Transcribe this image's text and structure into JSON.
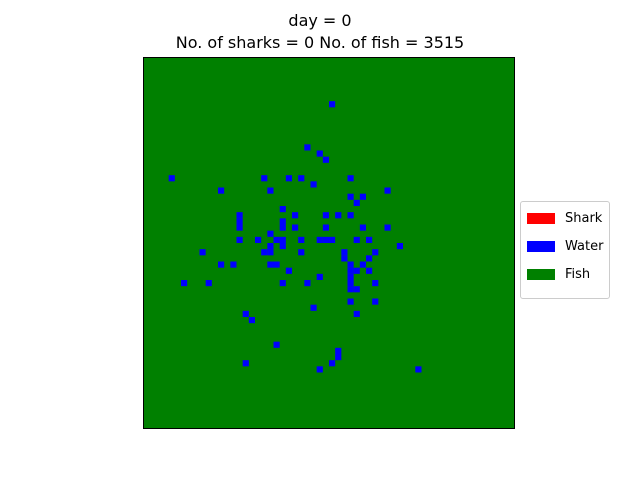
{
  "chart_data": {
    "type": "heatmap",
    "title_line1": "day = 0",
    "title_line2": "No. of sharks = 0 No. of fish = 3515",
    "grid_size": 60,
    "default_state": "fish",
    "legend_location": "center-right",
    "axes_visible": false,
    "legend": [
      {
        "label": "Shark",
        "color": "#ff0000"
      },
      {
        "label": "Water",
        "color": "#0000ff"
      },
      {
        "label": "Fish",
        "color": "#008000"
      }
    ],
    "cell_colors": {
      "shark": "#ff0000",
      "water": "#0000ff",
      "fish": "#008000"
    },
    "water_cells": [
      [
        30,
        7
      ],
      [
        26,
        14
      ],
      [
        28,
        15
      ],
      [
        29,
        16
      ],
      [
        4,
        19
      ],
      [
        19,
        19
      ],
      [
        23,
        19
      ],
      [
        25,
        19
      ],
      [
        27,
        20
      ],
      [
        33,
        19
      ],
      [
        12,
        21
      ],
      [
        20,
        21
      ],
      [
        39,
        21
      ],
      [
        33,
        22
      ],
      [
        35,
        22
      ],
      [
        34,
        23
      ],
      [
        22,
        24
      ],
      [
        15,
        25
      ],
      [
        29,
        25
      ],
      [
        31,
        25
      ],
      [
        33,
        25
      ],
      [
        24,
        25
      ],
      [
        15,
        26
      ],
      [
        22,
        26
      ],
      [
        15,
        27
      ],
      [
        22,
        27
      ],
      [
        24,
        27
      ],
      [
        29,
        27
      ],
      [
        35,
        27
      ],
      [
        39,
        27
      ],
      [
        20,
        28
      ],
      [
        15,
        29
      ],
      [
        18,
        29
      ],
      [
        21,
        29
      ],
      [
        22,
        29
      ],
      [
        25,
        29
      ],
      [
        28,
        29
      ],
      [
        29,
        29
      ],
      [
        30,
        29
      ],
      [
        34,
        29
      ],
      [
        36,
        29
      ],
      [
        20,
        30
      ],
      [
        22,
        30
      ],
      [
        41,
        30
      ],
      [
        9,
        31
      ],
      [
        19,
        31
      ],
      [
        20,
        31
      ],
      [
        25,
        31
      ],
      [
        32,
        31
      ],
      [
        37,
        31
      ],
      [
        32,
        32
      ],
      [
        36,
        32
      ],
      [
        12,
        33
      ],
      [
        14,
        33
      ],
      [
        20,
        33
      ],
      [
        21,
        33
      ],
      [
        33,
        33
      ],
      [
        35,
        33
      ],
      [
        23,
        34
      ],
      [
        33,
        34
      ],
      [
        34,
        34
      ],
      [
        36,
        34
      ],
      [
        28,
        35
      ],
      [
        33,
        35
      ],
      [
        6,
        36
      ],
      [
        10,
        36
      ],
      [
        22,
        36
      ],
      [
        26,
        36
      ],
      [
        33,
        36
      ],
      [
        37,
        36
      ],
      [
        33,
        37
      ],
      [
        34,
        37
      ],
      [
        33,
        39
      ],
      [
        37,
        39
      ],
      [
        27,
        40
      ],
      [
        16,
        41
      ],
      [
        34,
        41
      ],
      [
        17,
        42
      ],
      [
        21,
        46
      ],
      [
        31,
        47
      ],
      [
        31,
        48
      ],
      [
        16,
        49
      ],
      [
        30,
        49
      ],
      [
        28,
        50
      ],
      [
        44,
        50
      ]
    ]
  }
}
